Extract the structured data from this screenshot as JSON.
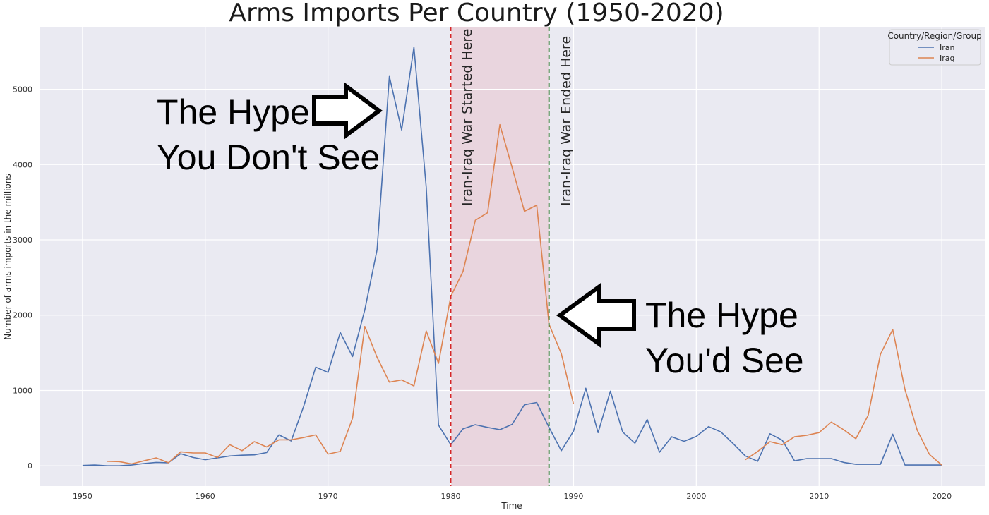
{
  "chart_data": {
    "type": "line",
    "title": "Arms Imports Per Country (1950-2020)",
    "xlabel": "Time",
    "ylabel": "Number of arms imports in the millions",
    "xlim": [
      1946.5,
      2023.5
    ],
    "ylim": [
      -270,
      5830
    ],
    "xticks": [
      1950,
      1960,
      1970,
      1980,
      1990,
      2000,
      2010,
      2020
    ],
    "yticks": [
      0,
      1000,
      2000,
      3000,
      4000,
      5000
    ],
    "grid": true,
    "background": "#eaeaf2",
    "legend": {
      "title": "Country/Region/Group",
      "placement": "top-right",
      "entries": [
        "Iran",
        "Iraq"
      ]
    },
    "series": [
      {
        "name": "Iran",
        "color": "#4c72b0",
        "x": [
          1950,
          1951,
          1952,
          1953,
          1954,
          1955,
          1956,
          1957,
          1958,
          1959,
          1960,
          1961,
          1962,
          1963,
          1964,
          1965,
          1966,
          1967,
          1968,
          1969,
          1970,
          1971,
          1972,
          1973,
          1974,
          1975,
          1976,
          1977,
          1978,
          1979,
          1980,
          1981,
          1982,
          1983,
          1984,
          1985,
          1986,
          1987,
          1988,
          1989,
          1990,
          1991,
          1992,
          1993,
          1994,
          1995,
          1996,
          1997,
          1998,
          1999,
          2000,
          2001,
          2002,
          2003,
          2004,
          2005,
          2006,
          2007,
          2008,
          2009,
          2010,
          2011,
          2012,
          2013,
          2014,
          2015,
          2016,
          2017,
          2018,
          2019,
          2020
        ],
        "values": [
          5,
          10,
          0,
          0,
          10,
          30,
          45,
          40,
          160,
          110,
          80,
          105,
          130,
          140,
          145,
          175,
          410,
          330,
          780,
          1310,
          1240,
          1770,
          1450,
          2070,
          2870,
          5170,
          4460,
          5560,
          3700,
          540,
          280,
          490,
          545,
          510,
          480,
          550,
          810,
          840,
          510,
          200,
          460,
          1030,
          440,
          990,
          450,
          300,
          615,
          180,
          385,
          325,
          390,
          520,
          450,
          295,
          130,
          60,
          425,
          340,
          65,
          95,
          95,
          95,
          45,
          20,
          20,
          20,
          420,
          10,
          10,
          10,
          10
        ]
      },
      {
        "name": "Iraq",
        "color": "#dd8452",
        "x": [
          1952,
          1953,
          1954,
          1955,
          1956,
          1957,
          1958,
          1959,
          1960,
          1961,
          1962,
          1963,
          1964,
          1965,
          1966,
          1967,
          1968,
          1969,
          1970,
          1971,
          1972,
          1973,
          1974,
          1975,
          1976,
          1977,
          1978,
          1979,
          1980,
          1981,
          1982,
          1983,
          1984,
          1985,
          1986,
          1987,
          1988,
          1989,
          1990,
          null,
          2004,
          2005,
          2006,
          2007,
          2008,
          2009,
          2010,
          2011,
          2012,
          2013,
          2014,
          2015,
          2016,
          2017,
          2018,
          2019,
          2020
        ],
        "values": [
          60,
          55,
          25,
          65,
          105,
          40,
          185,
          170,
          170,
          110,
          280,
          200,
          320,
          250,
          345,
          345,
          375,
          410,
          155,
          190,
          630,
          1850,
          1440,
          1110,
          1140,
          1060,
          1790,
          1360,
          2250,
          2580,
          3260,
          3360,
          4530,
          3960,
          3380,
          3460,
          1880,
          1490,
          820,
          null,
          80,
          190,
          320,
          280,
          385,
          405,
          440,
          580,
          480,
          360,
          670,
          1480,
          1810,
          1010,
          470,
          150,
          10
        ]
      }
    ],
    "annotations": [
      {
        "type": "vline",
        "x": 1980,
        "color": "#d62728",
        "label": "Iran-Iraq War Started Here"
      },
      {
        "type": "vline",
        "x": 1988,
        "color": "#2a7a2a",
        "label": "Iran-Iraq War Ended Here"
      },
      {
        "type": "span",
        "x0": 1980,
        "x1": 1988,
        "color": "#e7c7d0"
      }
    ],
    "callouts": [
      {
        "line1": "The Hype",
        "line2": "You Don't See",
        "arrow": "right"
      },
      {
        "line1": "The Hype",
        "line2": "You'd See",
        "arrow": "left"
      }
    ]
  }
}
